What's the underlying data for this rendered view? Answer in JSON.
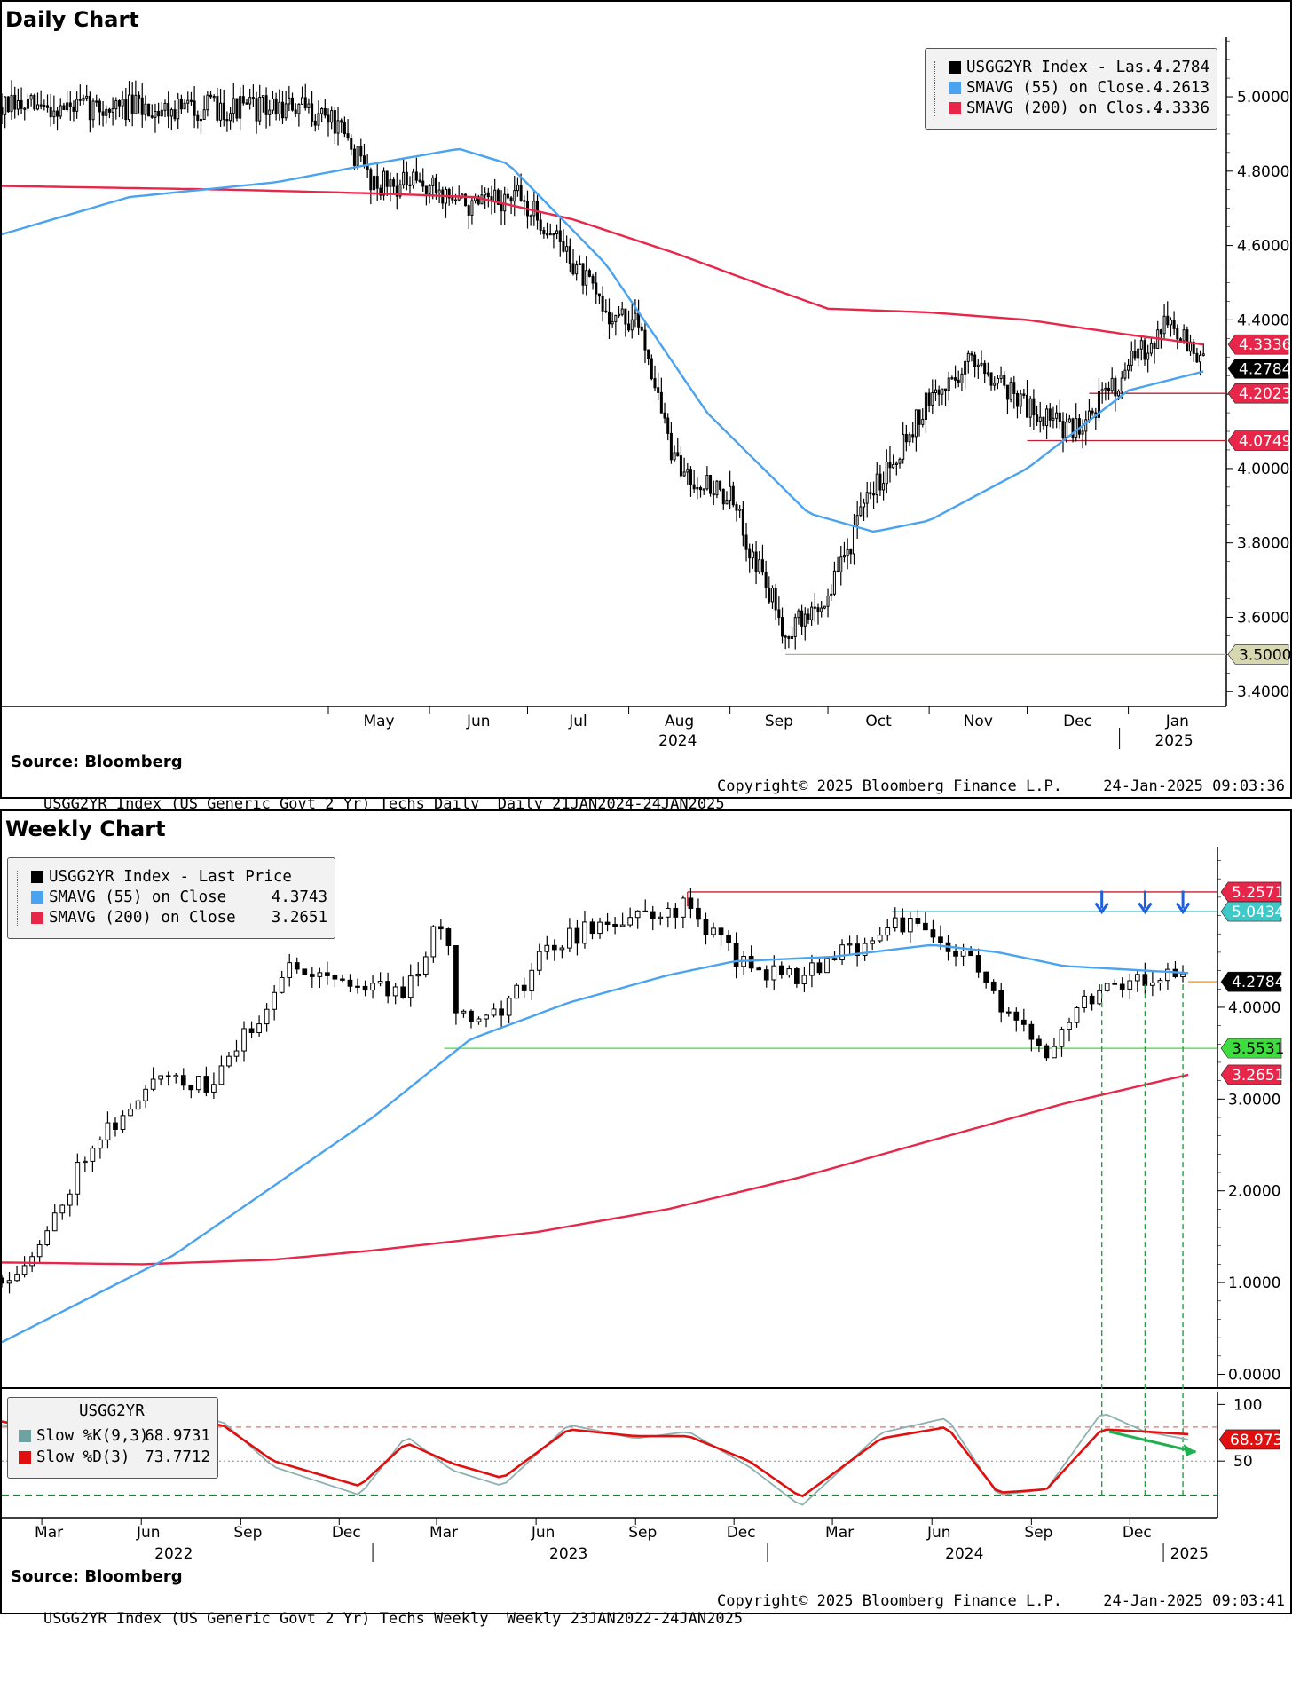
{
  "daily": {
    "title": "Daily Chart",
    "legend": [
      {
        "label": "USGG2YR Index - Las...",
        "value": "4.2784",
        "color": "#000000"
      },
      {
        "label": "SMAVG (55)  on Close...",
        "value": "4.2613",
        "color": "#4aa3f0"
      },
      {
        "label": "SMAVG (200)  on Clos...",
        "value": "4.3336",
        "color": "#e8264a"
      }
    ],
    "source": "Source:  Bloomberg",
    "footer_left": "USGG2YR Index (US Generic Govt 2 Yr) Techs Daily  Daily 21JAN2024-24JAN2025",
    "footer_mid": "Copyright© 2025 Bloomberg Finance L.P.",
    "footer_right": "24-Jan-2025 09:03:36"
  },
  "weekly": {
    "title": "Weekly Chart",
    "legend": [
      {
        "label": "USGG2YR Index - Last Price",
        "value": "",
        "color": "#000000"
      },
      {
        "label": "SMAVG (55)  on Close",
        "value": "4.3743",
        "color": "#4aa3f0"
      },
      {
        "label": "SMAVG (200)  on Close",
        "value": "3.2651",
        "color": "#e8264a"
      }
    ],
    "source": "Source:  Bloomberg",
    "footer_left": "USGG2YR Index (US Generic Govt 2 Yr) Techs Weekly  Weekly 23JAN2022-24JAN2025",
    "footer_mid": "Copyright© 2025 Bloomberg Finance L.P.",
    "footer_right": "24-Jan-2025 09:03:41"
  },
  "oscillator": {
    "title": "USGG2YR",
    "legend": [
      {
        "label": "Slow %K(9,3)",
        "value": "68.9731",
        "color": "#6fa3a3"
      },
      {
        "label": "Slow %D(3)",
        "value": "73.7712",
        "color": "#e01010"
      }
    ]
  },
  "chart_data": [
    {
      "type": "candlestick",
      "title": "Daily Chart",
      "y_ticks": [
        "3.4000",
        "3.6000",
        "3.8000",
        "4.0000",
        "4.2000",
        "4.4000",
        "4.6000",
        "4.8000",
        "5.0000"
      ],
      "ylim": [
        3.36,
        5.16
      ],
      "x_months": [
        "May",
        "Jun",
        "Jul",
        "Aug",
        "Sep",
        "Oct",
        "Nov",
        "Dec",
        "Jan"
      ],
      "x_years": [
        "2024",
        "2025"
      ],
      "series": [
        {
          "name": "USGG2YR Index - Last Price",
          "color": "#000000",
          "x": [
            "2024-04-20",
            "2024-05-01",
            "2024-05-15",
            "2024-05-31",
            "2024-06-15",
            "2024-06-28",
            "2024-07-10",
            "2024-07-25",
            "2024-08-05",
            "2024-08-15",
            "2024-09-01",
            "2024-09-18",
            "2024-09-30",
            "2024-10-15",
            "2024-10-31",
            "2024-11-15",
            "2024-12-02",
            "2024-12-15",
            "2024-12-31",
            "2025-01-13",
            "2025-01-24"
          ],
          "y": [
            4.97,
            4.95,
            4.77,
            4.76,
            4.7,
            4.73,
            4.62,
            4.42,
            4.38,
            4.01,
            3.92,
            3.56,
            3.64,
            3.95,
            4.17,
            4.3,
            4.16,
            4.1,
            4.26,
            4.4,
            4.2784
          ]
        },
        {
          "name": "SMAVG (55) on Close",
          "color": "#4aa3f0",
          "x": [
            "2024-01-22",
            "2024-03-01",
            "2024-04-15",
            "2024-05-15",
            "2024-06-10",
            "2024-06-25",
            "2024-07-25",
            "2024-08-25",
            "2024-09-25",
            "2024-10-15",
            "2024-11-01",
            "2024-12-01",
            "2025-01-01",
            "2025-01-24"
          ],
          "y": [
            4.63,
            4.73,
            4.77,
            4.82,
            4.86,
            4.82,
            4.55,
            4.15,
            3.88,
            3.83,
            3.86,
            4.0,
            4.21,
            4.2613
          ]
        },
        {
          "name": "SMAVG (200) on Close",
          "color": "#e8264a",
          "x": [
            "2024-01-22",
            "2024-04-01",
            "2024-05-15",
            "2024-06-15",
            "2024-07-15",
            "2024-08-15",
            "2024-09-15",
            "2024-10-01",
            "2024-11-01",
            "2024-12-01",
            "2025-01-01",
            "2025-01-24"
          ],
          "y": [
            4.76,
            4.75,
            4.74,
            4.73,
            4.67,
            4.58,
            4.48,
            4.43,
            4.42,
            4.4,
            4.36,
            4.3336
          ]
        }
      ],
      "levels": [
        {
          "label": "4.3336",
          "value": 4.3336,
          "color": "#e8264a"
        },
        {
          "label": "4.2784",
          "value": 4.2784,
          "color": "#000000"
        },
        {
          "label": "4.2023",
          "value": 4.2023,
          "color": "#e8264a"
        },
        {
          "label": "4.0749",
          "value": 4.0749,
          "color": "#e8264a"
        },
        {
          "label": "3.5000",
          "value": 3.5,
          "color": "#c8c8a0"
        }
      ]
    },
    {
      "type": "candlestick",
      "title": "Weekly Chart",
      "y_ticks": [
        "0.0000",
        "1.0000",
        "2.0000",
        "3.0000",
        "4.0000"
      ],
      "ylim": [
        -0.15,
        5.75
      ],
      "x_months": [
        "Mar",
        "Jun",
        "Sep",
        "Dec",
        "Mar",
        "Jun",
        "Sep",
        "Dec",
        "Mar",
        "Jun",
        "Sep",
        "Dec"
      ],
      "x_years": [
        "2022",
        "2023",
        "2024",
        "2025"
      ],
      "series": [
        {
          "name": "USGG2YR Index - Last Price",
          "color": "#000000",
          "x": [
            "2022-01-23",
            "2022-03-01",
            "2022-04-15",
            "2022-06-01",
            "2022-06-15",
            "2022-08-01",
            "2022-09-15",
            "2022-10-20",
            "2022-12-15",
            "2023-02-01",
            "2023-03-08",
            "2023-03-20",
            "2023-05-01",
            "2023-06-15",
            "2023-08-01",
            "2023-10-19",
            "2023-12-15",
            "2024-02-01",
            "2024-03-15",
            "2024-04-30",
            "2024-06-01",
            "2024-07-15",
            "2024-08-05",
            "2024-09-15",
            "2024-10-15",
            "2024-11-15",
            "2024-12-15",
            "2025-01-10",
            "2025-01-24"
          ],
          "y": [
            1.05,
            1.4,
            2.55,
            2.95,
            3.35,
            3.1,
            3.85,
            4.5,
            4.25,
            4.2,
            5.0,
            3.95,
            3.95,
            4.7,
            4.9,
            5.1,
            4.4,
            4.35,
            4.6,
            4.95,
            4.75,
            4.45,
            3.9,
            3.56,
            4.05,
            4.3,
            4.3,
            4.37,
            4.2784
          ]
        },
        {
          "name": "SMAVG (55) on Close",
          "color": "#4aa3f0",
          "x": [
            "2022-01-23",
            "2022-07-01",
            "2023-01-01",
            "2023-04-01",
            "2023-07-01",
            "2023-10-01",
            "2023-12-01",
            "2024-03-01",
            "2024-06-01",
            "2024-08-01",
            "2024-10-01",
            "2025-01-24"
          ],
          "y": [
            0.35,
            1.3,
            2.8,
            3.65,
            4.05,
            4.35,
            4.5,
            4.55,
            4.68,
            4.6,
            4.45,
            4.3743
          ]
        },
        {
          "name": "SMAVG (200) on Close",
          "color": "#e8264a",
          "x": [
            "2022-01-23",
            "2022-06-01",
            "2022-10-01",
            "2023-01-01",
            "2023-06-01",
            "2023-10-01",
            "2024-02-01",
            "2024-06-01",
            "2024-10-01",
            "2025-01-24"
          ],
          "y": [
            1.22,
            1.2,
            1.25,
            1.35,
            1.55,
            1.8,
            2.15,
            2.55,
            2.95,
            3.2651
          ]
        }
      ],
      "levels": [
        {
          "label": "5.2571",
          "value": 5.2571,
          "color": "#e8264a"
        },
        {
          "label": "5.0434",
          "value": 5.0434,
          "color": "#3fc8c8"
        },
        {
          "label": "4.2784",
          "value": 4.2784,
          "color": "#000000"
        },
        {
          "label": "3.5531",
          "value": 3.5531,
          "color": "#3fdc3f"
        },
        {
          "label": "3.2651",
          "value": 3.2651,
          "color": "#e8264a"
        }
      ]
    },
    {
      "type": "line",
      "title": "USGG2YR",
      "y_ticks": [
        "50",
        "100"
      ],
      "ylim": [
        0,
        105
      ],
      "series": [
        {
          "name": "Slow %K(9,3)",
          "color": "#8fb0b0",
          "x": [
            "2022-01-23",
            "2022-04-01",
            "2022-06-15",
            "2022-08-15",
            "2022-10-01",
            "2022-12-20",
            "2023-02-01",
            "2023-03-15",
            "2023-05-01",
            "2023-07-01",
            "2023-09-01",
            "2023-10-20",
            "2023-12-15",
            "2024-02-01",
            "2024-04-15",
            "2024-06-15",
            "2024-08-01",
            "2024-09-15",
            "2024-11-05",
            "2024-12-15",
            "2025-01-24"
          ],
          "y": [
            82,
            70,
            92,
            85,
            45,
            20,
            72,
            42,
            28,
            82,
            70,
            76,
            45,
            10,
            75,
            88,
            20,
            25,
            93,
            76,
            68.9731
          ]
        },
        {
          "name": "Slow %D(3)",
          "color": "#e01010",
          "x": [
            "2022-01-23",
            "2022-04-01",
            "2022-06-15",
            "2022-08-15",
            "2022-10-01",
            "2022-12-20",
            "2023-02-01",
            "2023-03-15",
            "2023-05-01",
            "2023-07-01",
            "2023-09-01",
            "2023-10-20",
            "2023-12-15",
            "2024-02-01",
            "2024-04-15",
            "2024-06-15",
            "2024-08-01",
            "2024-09-15",
            "2024-11-05",
            "2024-12-15",
            "2025-01-24"
          ],
          "y": [
            85,
            72,
            86,
            82,
            50,
            28,
            66,
            48,
            35,
            78,
            72,
            72,
            50,
            18,
            70,
            80,
            22,
            25,
            78,
            76,
            73.7712
          ]
        }
      ],
      "levels": [
        {
          "label": "68.9731",
          "value": 68.9731,
          "color": "#e01010"
        }
      ]
    }
  ]
}
